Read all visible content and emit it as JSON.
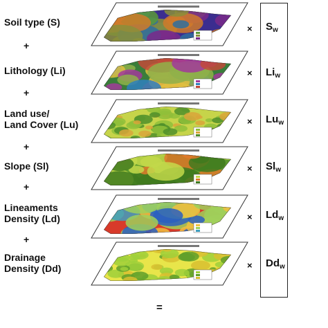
{
  "layers": [
    {
      "label": "Soil type (S)",
      "weight_base": "S",
      "weight_sub": "w"
    },
    {
      "label": "Lithology (Li)",
      "weight_base": "Li",
      "weight_sub": "w"
    },
    {
      "label": "Land use/\nLand Cover (Lu)",
      "weight_base": "Lu",
      "weight_sub": "w"
    },
    {
      "label": "Slope (Sl)",
      "weight_base": "Sl",
      "weight_sub": "w"
    },
    {
      "label": "Lineaments\nDensity (Ld)",
      "weight_base": "Ld",
      "weight_sub": "w"
    },
    {
      "label": "Drainage\nDensity (Dd)",
      "weight_base": "Dd",
      "weight_sub": "w"
    }
  ],
  "operators": {
    "plus": "+",
    "times": "×",
    "equals": "="
  },
  "colors": {
    "soil": [
      "#3b2d8f",
      "#5a9a3a",
      "#8a8f3a",
      "#7a2a8a",
      "#d07a2a",
      "#2f6f9f"
    ],
    "lithology": [
      "#3a7d3a",
      "#a23a9a",
      "#2f7fbf",
      "#c24a3a",
      "#8fb04a",
      "#e0c040"
    ],
    "landuse": [
      "#c6d44a",
      "#8fbf3a",
      "#d9a53a",
      "#4f8f2a"
    ],
    "slope": [
      "#5d9a2d",
      "#c2d84a",
      "#e07a2a",
      "#3f7a1f"
    ],
    "lineament": [
      "#d83a2a",
      "#f0c040",
      "#9fd05a",
      "#3f9fbf",
      "#2a5fbf"
    ],
    "drainage": [
      "#e8e54a",
      "#9fd03a",
      "#5f9f2a",
      "#d8c030"
    ]
  }
}
